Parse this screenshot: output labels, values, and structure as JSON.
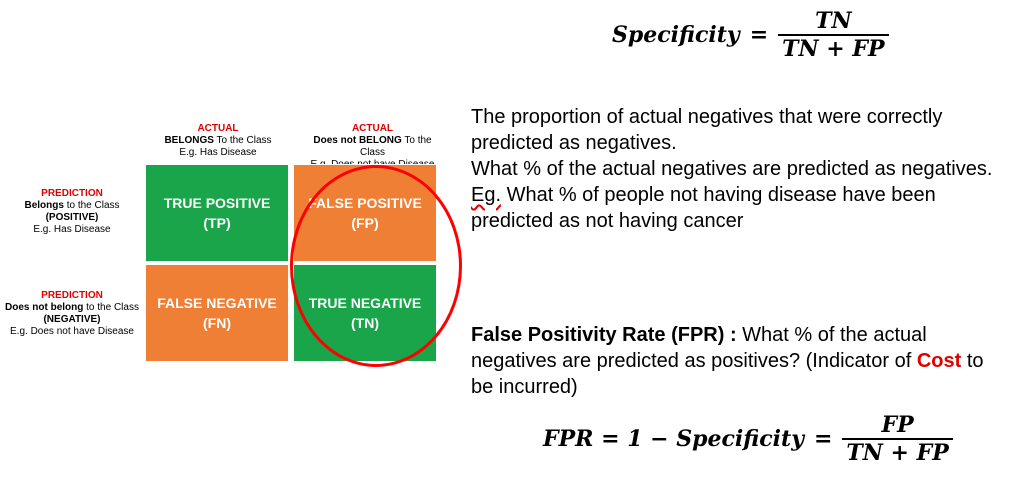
{
  "formula_top": {
    "lhs": "Specificity",
    "eq": "=",
    "numerator": "TN",
    "denominator": "TN + FP"
  },
  "matrix": {
    "col_headers": [
      {
        "label": "ACTUAL",
        "strong": "BELONGS",
        "rest": " To the Class",
        "example": "E.g. Has Disease"
      },
      {
        "label": "ACTUAL",
        "strong": "Does not BELONG",
        "rest": " To the Class",
        "example": "E.g. Does not have Disease"
      }
    ],
    "row_headers": [
      {
        "label": "PREDICTION",
        "strong": "Belongs",
        "rest": " to the Class",
        "paren": "(POSITIVE)",
        "example": "E.g. Has Disease"
      },
      {
        "label": "PREDICTION",
        "strong": "Does not belong",
        "rest": " to the Class",
        "paren": "(NEGATIVE)",
        "example": "E.g. Does not have Disease"
      }
    ],
    "cells": [
      {
        "title": "TRUE POSITIVE",
        "abbr": "(TP)",
        "color": "#1aa54b"
      },
      {
        "title": "FALSE POSITIVE",
        "abbr": "(FP)",
        "color": "#ef7f35"
      },
      {
        "title": "FALSE NEGATIVE",
        "abbr": "(FN)",
        "color": "#ef7f35"
      },
      {
        "title": "TRUE NEGATIVE",
        "abbr": "(TN)",
        "color": "#1aa54b"
      }
    ],
    "highlight_color": "#ff0000"
  },
  "description": {
    "line1": "The proportion of actual negatives that were correctly predicted as negatives.",
    "line2": "What % of the actual negatives are predicted as negatives.",
    "eg_prefix": "Eg.",
    "eg_rest": " What % of people not having disease have been predicted as not having cancer"
  },
  "fpr": {
    "title": "False Positivity Rate (FPR) :",
    "text": " What % of the actual negatives are predicted as positives? (Indicator of ",
    "cost": "Cost",
    "tail": " to be incurred)"
  },
  "formula_bottom": {
    "lhs": "FPR = 1 − Specificity",
    "eq": "=",
    "numerator": "FP",
    "denominator": "TN + FP"
  }
}
